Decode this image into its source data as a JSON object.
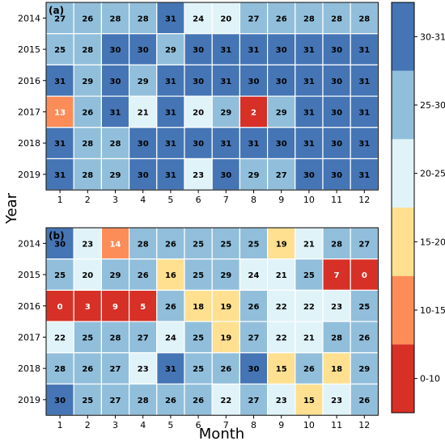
{
  "chart_data": {
    "type": "heatmap",
    "xlabel": "Month",
    "ylabel": "Year",
    "x_categories": [
      "1",
      "2",
      "3",
      "4",
      "5",
      "6",
      "7",
      "8",
      "9",
      "10",
      "11",
      "12"
    ],
    "y_categories": [
      "2014",
      "2015",
      "2016",
      "2017",
      "2018",
      "2019"
    ],
    "panels": [
      {
        "label": "(a)",
        "values": [
          [
            27,
            26,
            28,
            28,
            31,
            24,
            20,
            27,
            26,
            28,
            28,
            28
          ],
          [
            25,
            28,
            30,
            30,
            29,
            30,
            31,
            31,
            30,
            31,
            30,
            31
          ],
          [
            31,
            29,
            30,
            29,
            31,
            30,
            31,
            30,
            30,
            31,
            30,
            31
          ],
          [
            13,
            26,
            31,
            21,
            31,
            20,
            29,
            2,
            29,
            31,
            30,
            31
          ],
          [
            31,
            28,
            28,
            30,
            31,
            30,
            31,
            31,
            30,
            31,
            30,
            31
          ],
          [
            31,
            28,
            29,
            30,
            31,
            23,
            30,
            29,
            27,
            30,
            30,
            31
          ]
        ]
      },
      {
        "label": "(b)",
        "values": [
          [
            30,
            23,
            14,
            28,
            26,
            25,
            25,
            25,
            19,
            21,
            28,
            27
          ],
          [
            25,
            20,
            29,
            26,
            16,
            25,
            29,
            24,
            21,
            25,
            7,
            0
          ],
          [
            0,
            3,
            9,
            5,
            26,
            18,
            19,
            26,
            22,
            22,
            23,
            25
          ],
          [
            22,
            25,
            28,
            27,
            24,
            25,
            19,
            27,
            22,
            21,
            28,
            26
          ],
          [
            28,
            26,
            27,
            23,
            31,
            25,
            26,
            30,
            15,
            26,
            18,
            29
          ],
          [
            30,
            25,
            27,
            28,
            26,
            26,
            22,
            27,
            23,
            15,
            23,
            26
          ]
        ]
      }
    ],
    "legend": {
      "position": "right",
      "bins": [
        {
          "label": "0-10",
          "color": "#d73027"
        },
        {
          "label": "10-15",
          "color": "#fc8d59"
        },
        {
          "label": "15-20",
          "color": "#fee090"
        },
        {
          "label": "20-25",
          "color": "#e0f3f8"
        },
        {
          "label": "25-30",
          "color": "#91bfdb"
        },
        {
          "label": "30-31",
          "color": "#4575b4"
        }
      ]
    }
  }
}
